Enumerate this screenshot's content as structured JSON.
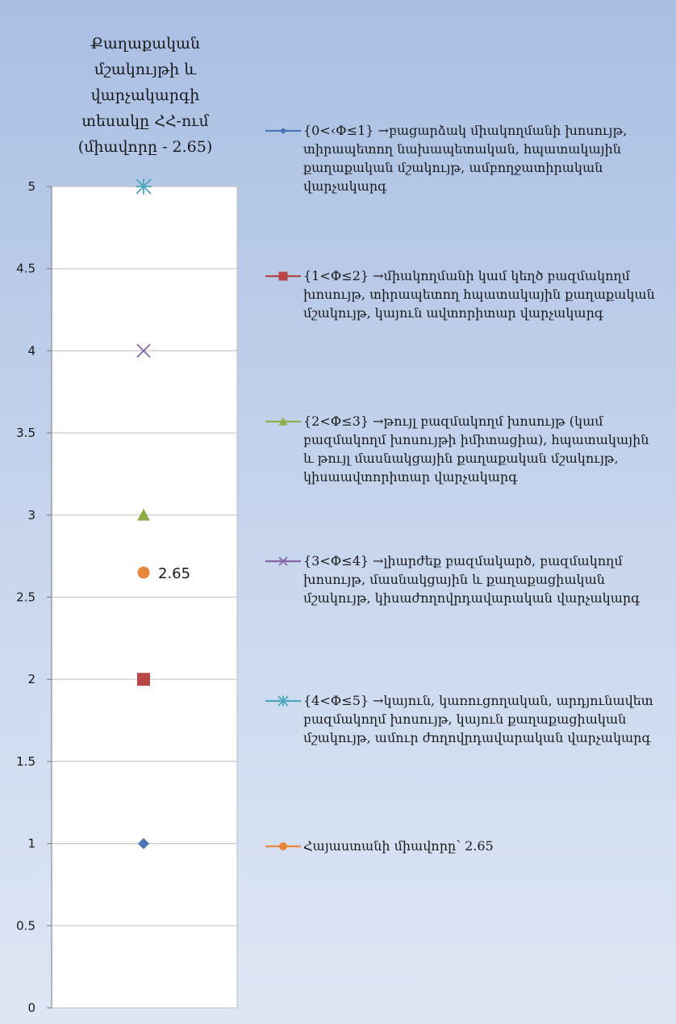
{
  "chart_data": {
    "type": "scatter",
    "title": "Քաղաքական\nմշակույթի և\nվարչակարգի\nտեսակը ՀՀ-ում\n(միավորը - 2.65)",
    "xlabel": "",
    "ylabel": "",
    "ylim": [
      0,
      5
    ],
    "y_ticks": [
      "0",
      "0.5",
      "1",
      "1.5",
      "2",
      "2.5",
      "3",
      "3.5",
      "4",
      "4.5",
      "5"
    ],
    "grid": true,
    "legend_position": "right",
    "series": [
      {
        "label": "{0<‹Փ≤1} →բացարձակ միակողմանի խոսույթ, տիրապետող նախապետական, հպատակային քաղաքական մշակույթ, ամբողջատիրական վարչակարգ",
        "values": [
          1
        ],
        "marker": "diamond",
        "color": "#4a76b8"
      },
      {
        "label": "{1<Փ≤2} →միակողմանի կամ կեղծ բազմակողմ խոսույթ, տիրապետող հպատակային քաղաքական մշակույթ, կայուն ավտորիտար վարչակարգ",
        "values": [
          2
        ],
        "marker": "square",
        "color": "#b84646"
      },
      {
        "label": "{2<Փ≤3} →թույլ բազմակողմ խոսույթ (կամ բազմակողմ խոսույթի իմիտացիա), հպատակային և թույլ մասնակցային քաղաքական մշակույթ, կիսաավտորիտար վարչակարգ",
        "values": [
          3
        ],
        "marker": "triangle",
        "color": "#8fae4a"
      },
      {
        "label": "{3<Փ≤4} →լիարժեք բազմակարծ, բազմակողմ խոսույթ, մասնակցային և քաղաքացիական մշակույթ, կիսաժողովրդավարական վարչակարգ",
        "values": [
          4
        ],
        "marker": "x",
        "color": "#8466a8"
      },
      {
        "label": "{4<Փ≤5} →կայուն, կառուցողական, արդյունավետ բազմակողմ խոսույթ, կայուն քաղաքացիական մշակույթ, ամուր ժողովրդավարական վարչակարգ",
        "values": [
          5
        ],
        "marker": "star",
        "color": "#4aa7bd"
      },
      {
        "label": "Հայաստանի միավորը՝ 2.65",
        "values": [
          2.65
        ],
        "marker": "circle",
        "color": "#e8873a",
        "data_label": "2.65"
      }
    ]
  }
}
